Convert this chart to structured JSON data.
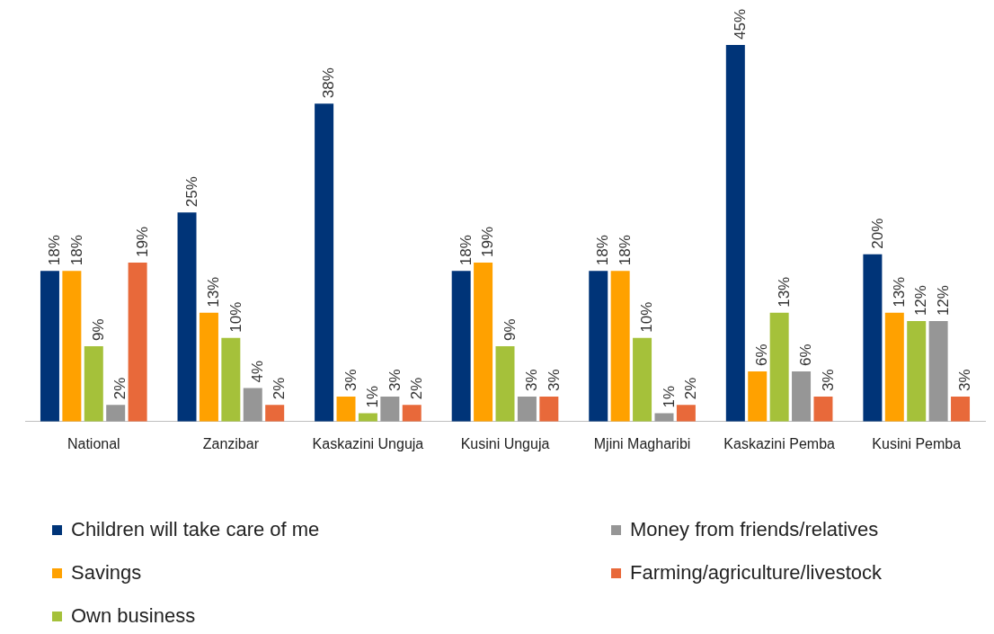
{
  "chart_data": {
    "type": "bar",
    "relative": false,
    "categories": [
      "National",
      "Zanzibar",
      "Kaskazini Unguja",
      "Kusini Unguja",
      "Mjini Magharibi",
      "Kaskazini Pemba",
      "Kusini Pemba"
    ],
    "series": [
      {
        "name": "Children will take care of me",
        "color": "#003478",
        "values": [
          18,
          25,
          38,
          18,
          18,
          45,
          20
        ],
        "value_labels": [
          "18%",
          "25%",
          "38%",
          "18%",
          "18%",
          "45%",
          "20%"
        ]
      },
      {
        "name": "Savings",
        "color": "#ffa100",
        "values": [
          18,
          13,
          3,
          19,
          18,
          6,
          13
        ],
        "value_labels": [
          "18%",
          "13%",
          "3%",
          "19%",
          "18%",
          "6%",
          "13%"
        ]
      },
      {
        "name": "Own business",
        "color": "#a5c13a",
        "values": [
          9,
          10,
          1,
          9,
          10,
          13,
          12
        ],
        "value_labels": [
          "9%",
          "10%",
          "1%",
          "9%",
          "10%",
          "13%",
          "12%"
        ]
      },
      {
        "name": "Money from friends/relatives",
        "color": "#969696",
        "values": [
          2,
          4,
          3,
          3,
          1,
          6,
          12
        ],
        "value_labels": [
          "2%",
          "4%",
          "3%",
          "3%",
          "1%",
          "6%",
          "12%"
        ]
      },
      {
        "name": "Farming/agriculture/livestock",
        "color": "#e8693a",
        "values": [
          19,
          2,
          2,
          3,
          2,
          3,
          3
        ],
        "value_labels": [
          "19%",
          "2%",
          "2%",
          "3%",
          "2%",
          "3%",
          "3%"
        ]
      }
    ],
    "legend": "bottom",
    "grid": false
  }
}
